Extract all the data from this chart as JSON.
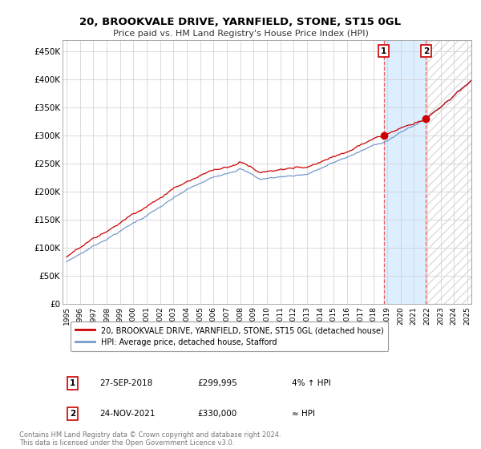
{
  "title": "20, BROOKVALE DRIVE, YARNFIELD, STONE, ST15 0GL",
  "subtitle": "Price paid vs. HM Land Registry's House Price Index (HPI)",
  "ylabel_ticks": [
    "£0",
    "£50K",
    "£100K",
    "£150K",
    "£200K",
    "£250K",
    "£300K",
    "£350K",
    "£400K",
    "£450K"
  ],
  "ytick_values": [
    0,
    50000,
    100000,
    150000,
    200000,
    250000,
    300000,
    350000,
    400000,
    450000
  ],
  "ylim": [
    0,
    470000
  ],
  "xlim_start": 1994.7,
  "xlim_end": 2025.3,
  "legend_house": "20, BROOKVALE DRIVE, YARNFIELD, STONE, ST15 0GL (detached house)",
  "legend_hpi": "HPI: Average price, detached house, Stafford",
  "sale1_label": "1",
  "sale1_date": "27-SEP-2018",
  "sale1_price": "£299,995",
  "sale1_rel": "4% ↑ HPI",
  "sale2_label": "2",
  "sale2_date": "24-NOV-2021",
  "sale2_price": "£330,000",
  "sale2_rel": "≈ HPI",
  "footer": "Contains HM Land Registry data © Crown copyright and database right 2024.\nThis data is licensed under the Open Government Licence v3.0.",
  "sale1_x": 2018.74,
  "sale1_y": 299995,
  "sale2_x": 2021.9,
  "sale2_y": 330000,
  "highlight_x_start": 2018.74,
  "highlight_x_end": 2021.9,
  "hatch_x_start": 2021.9,
  "hatch_x_end": 2025.3,
  "red_color": "#cc0000",
  "blue_color": "#7799cc",
  "highlight_color": "#ddeeff",
  "vline1_color": "#ee4444",
  "vline2_color": "#ee4444",
  "hatch_color": "#cccccc"
}
